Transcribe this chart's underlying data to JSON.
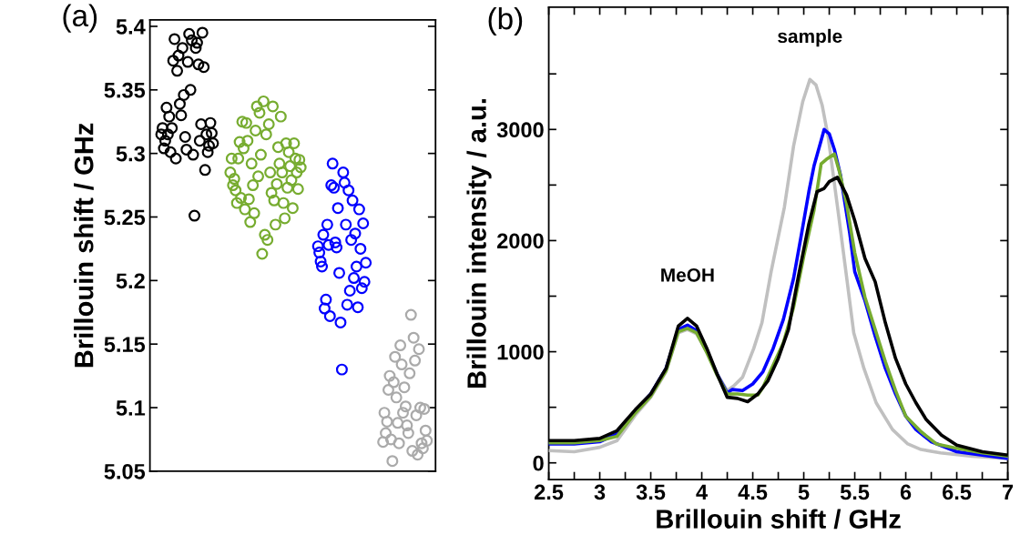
{
  "chart_data": [
    {
      "type": "scatter",
      "title": "(a)",
      "ylabel": "Brillouin shift / GHz",
      "marker": "circle",
      "tick_labels": "y",
      "categories": [
        null,
        null,
        null,
        null,
        null,
        null,
        null,
        null,
        null,
        null,
        null,
        null,
        null,
        null,
        null,
        null,
        null,
        null,
        null,
        null,
        null,
        null,
        null,
        null,
        null,
        null,
        null,
        null,
        null,
        null,
        null,
        null,
        null,
        null,
        null,
        null,
        null,
        null,
        null,
        null,
        null,
        null,
        null,
        null,
        null,
        null,
        null,
        null,
        null,
        null,
        null,
        null,
        null,
        null,
        null,
        null,
        null,
        null,
        null,
        null,
        null,
        null,
        null,
        null,
        null,
        null,
        null,
        null,
        null,
        null,
        null,
        null,
        null,
        null,
        null,
        null,
        null,
        null,
        null,
        null,
        null,
        null,
        null,
        null,
        null,
        null,
        null,
        null,
        null,
        null,
        null,
        null,
        null,
        null,
        null,
        null,
        null,
        null,
        null,
        null,
        null,
        null,
        null,
        null,
        null,
        null,
        null,
        null,
        null,
        null,
        null,
        null,
        null,
        null,
        null,
        null,
        null,
        null,
        null,
        null,
        null,
        null,
        null,
        null,
        null,
        null,
        null,
        null,
        null,
        null,
        null,
        null,
        null,
        null,
        null,
        null,
        null,
        null,
        null,
        null,
        null,
        null,
        null,
        null,
        null,
        null,
        null,
        null,
        null,
        null,
        null,
        null,
        null,
        null,
        null,
        null,
        null,
        null,
        null,
        null,
        null,
        null,
        null,
        null,
        null,
        null,
        null,
        null,
        null,
        null,
        null,
        null,
        null,
        null,
        null,
        null,
        null,
        null,
        null,
        null,
        null,
        null,
        null,
        null,
        null,
        null,
        null,
        null,
        null,
        null,
        null,
        null,
        null,
        null,
        null,
        null,
        null,
        null,
        null,
        null,
        null,
        null,
        null,
        null,
        null,
        null,
        null,
        null,
        null,
        null,
        null,
        null,
        null,
        null,
        null
      ],
      "ylim": [
        5.05,
        5.405
      ],
      "yticks": [
        5.05,
        5.1,
        5.15,
        5.2,
        5.25,
        5.3,
        5.35,
        5.4
      ],
      "series": [
        {
          "color": "#000000",
          "values": [
            null,
            null,
            null,
            null,
            null,
            null,
            null,
            null,
            5.315,
            5.32,
            5.304,
            5.31,
            5.336,
            5.315,
            5.329,
            5.301,
            5.32,
            5.373,
            5.39,
            5.296,
            5.365,
            5.377,
            5.339,
            5.33,
            5.383,
            5.346,
            5.313,
            5.303,
            5.372,
            5.394,
            5.35,
            5.389,
            5.299,
            5.251,
            5.383,
            5.387,
            5.37,
            5.31,
            5.323,
            5.395,
            5.368,
            5.287,
            5.315,
            5.301,
            5.306,
            5.324,
            5.316,
            5.308,
            null,
            null,
            null,
            null,
            null,
            null,
            null,
            null,
            null,
            null,
            null,
            null,
            null,
            null,
            null,
            null,
            null,
            null,
            null,
            null,
            null,
            null,
            null,
            null,
            null,
            null,
            null,
            null,
            null,
            null,
            null,
            null,
            null,
            null,
            null,
            null,
            null,
            null,
            null,
            null,
            null,
            null,
            null,
            null,
            null,
            null,
            null,
            null,
            null,
            null,
            null,
            null,
            null,
            null,
            null,
            null,
            null,
            null,
            null,
            null,
            null,
            null,
            null,
            null,
            null,
            null,
            null,
            null,
            null,
            null,
            null,
            null,
            null,
            null,
            null,
            null,
            null,
            null,
            null,
            null,
            null,
            null,
            null,
            null,
            null,
            null,
            null,
            null,
            null,
            null,
            null,
            null,
            null,
            null,
            null,
            null,
            null,
            null,
            null,
            null,
            null,
            null,
            null,
            null,
            null,
            null,
            null,
            null,
            null,
            null,
            null,
            null,
            null,
            null,
            null,
            null,
            null,
            null,
            null,
            null,
            null,
            null,
            null,
            null,
            null,
            null,
            null,
            null,
            null,
            null,
            null,
            null,
            null,
            null,
            null,
            null,
            null,
            null,
            null,
            null,
            null,
            null,
            null,
            null,
            null,
            null,
            null,
            null,
            null,
            null,
            null,
            null,
            null,
            null,
            null,
            null,
            null,
            null,
            null,
            null,
            null,
            null,
            null,
            null,
            null,
            null,
            null
          ]
        },
        {
          "color": "#77ac30",
          "values": [
            null,
            null,
            null,
            null,
            null,
            null,
            null,
            null,
            null,
            null,
            null,
            null,
            null,
            null,
            null,
            null,
            null,
            null,
            null,
            null,
            null,
            null,
            null,
            null,
            null,
            null,
            null,
            null,
            null,
            null,
            null,
            null,
            null,
            null,
            null,
            null,
            null,
            null,
            null,
            null,
            null,
            null,
            null,
            null,
            null,
            null,
            null,
            null,
            null,
            null,
            null,
            null,
            null,
            null,
            null,
            null,
            null,
            null,
            null,
            null,
            5.285,
            5.296,
            5.275,
            5.28,
            5.271,
            5.261,
            5.296,
            5.309,
            5.265,
            5.325,
            5.304,
            5.256,
            5.324,
            5.31,
            5.264,
            5.246,
            5.292,
            5.275,
            5.253,
            5.318,
            5.337,
            5.282,
            5.332,
            5.299,
            5.221,
            5.341,
            5.236,
            5.315,
            5.232,
            5.323,
            5.285,
            5.269,
            5.337,
            5.263,
            5.244,
            5.276,
            5.305,
            5.292,
            5.329,
            5.285,
            5.261,
            5.249,
            5.308,
            5.273,
            5.301,
            5.29,
            5.279,
            5.257,
            5.308,
            5.296,
            5.285,
            5.272,
            5.295,
            5.289,
            null,
            null,
            null,
            null,
            null,
            null,
            null,
            null,
            null,
            null,
            null,
            null,
            null,
            null,
            null,
            null,
            null,
            null,
            null,
            null,
            null,
            null,
            null,
            null,
            null,
            null,
            null,
            null,
            null,
            null,
            null,
            null,
            null,
            null,
            null,
            null,
            null,
            null,
            null,
            null,
            null,
            null,
            null,
            null,
            null,
            null,
            null,
            null,
            null,
            null,
            null,
            null,
            null,
            null,
            null,
            null,
            null,
            null,
            null,
            null,
            null,
            null,
            null,
            null,
            null,
            null,
            null,
            null,
            null,
            null,
            null,
            null,
            null,
            null,
            null,
            null,
            null,
            null,
            null,
            null,
            null,
            null,
            null,
            null,
            null,
            null,
            null,
            null,
            null,
            null,
            null,
            null,
            null,
            null,
            null,
            null,
            null,
            null,
            null,
            null,
            null
          ]
        },
        {
          "color": "#0000ff",
          "values": [
            null,
            null,
            null,
            null,
            null,
            null,
            null,
            null,
            null,
            null,
            null,
            null,
            null,
            null,
            null,
            null,
            null,
            null,
            null,
            null,
            null,
            null,
            null,
            null,
            null,
            null,
            null,
            null,
            null,
            null,
            null,
            null,
            null,
            null,
            null,
            null,
            null,
            null,
            null,
            null,
            null,
            null,
            null,
            null,
            null,
            null,
            null,
            null,
            null,
            null,
            null,
            null,
            null,
            null,
            null,
            null,
            null,
            null,
            null,
            null,
            null,
            null,
            null,
            null,
            null,
            null,
            null,
            null,
            null,
            null,
            null,
            null,
            null,
            null,
            null,
            null,
            null,
            null,
            null,
            null,
            null,
            null,
            null,
            null,
            null,
            null,
            null,
            null,
            null,
            null,
            null,
            null,
            null,
            null,
            null,
            null,
            null,
            null,
            null,
            null,
            null,
            null,
            null,
            null,
            null,
            null,
            null,
            null,
            null,
            null,
            null,
            null,
            null,
            null,
            null,
            null,
            null,
            null,
            null,
            null,
            null,
            null,
            null,
            null,
            null,
            null,
            5.227,
            5.222,
            5.215,
            5.211,
            5.236,
            5.178,
            5.185,
            5.244,
            5.228,
            5.172,
            5.275,
            5.292,
            5.273,
            5.23,
            5.226,
            5.257,
            5.206,
            5.167,
            5.13,
            5.285,
            5.277,
            5.244,
            5.181,
            5.271,
            5.192,
            5.232,
            5.263,
            5.202,
            5.237,
            5.211,
            5.179,
            5.256,
            5.225,
            5.194,
            5.245,
            5.199,
            5.214,
            null,
            null,
            null,
            null,
            null,
            null,
            null,
            null,
            null,
            null,
            null,
            null,
            null,
            null,
            null,
            null,
            null,
            null,
            null,
            null,
            null,
            null,
            null,
            null,
            null,
            null,
            null,
            null,
            null,
            null,
            null,
            null,
            null,
            null,
            null,
            null,
            null,
            null,
            null,
            null,
            null,
            null,
            null,
            null,
            null,
            null,
            null,
            null,
            null,
            null,
            null,
            null
          ]
        },
        {
          "color": "#aaaaaa",
          "values": [
            null,
            null,
            null,
            null,
            null,
            null,
            null,
            null,
            null,
            null,
            null,
            null,
            null,
            null,
            null,
            null,
            null,
            null,
            null,
            null,
            null,
            null,
            null,
            null,
            null,
            null,
            null,
            null,
            null,
            null,
            null,
            null,
            null,
            null,
            null,
            null,
            null,
            null,
            null,
            null,
            null,
            null,
            null,
            null,
            null,
            null,
            null,
            null,
            null,
            null,
            null,
            null,
            null,
            null,
            null,
            null,
            null,
            null,
            null,
            null,
            null,
            null,
            null,
            null,
            null,
            null,
            null,
            null,
            null,
            null,
            null,
            null,
            null,
            null,
            null,
            null,
            null,
            null,
            null,
            null,
            null,
            null,
            null,
            null,
            null,
            null,
            null,
            null,
            null,
            null,
            null,
            null,
            null,
            null,
            null,
            null,
            null,
            null,
            null,
            null,
            null,
            null,
            null,
            null,
            null,
            null,
            null,
            null,
            null,
            null,
            null,
            null,
            null,
            null,
            null,
            null,
            null,
            null,
            null,
            null,
            null,
            null,
            null,
            null,
            null,
            null,
            null,
            null,
            null,
            null,
            null,
            null,
            null,
            null,
            null,
            null,
            null,
            null,
            null,
            null,
            null,
            null,
            null,
            null,
            null,
            null,
            null,
            null,
            null,
            null,
            null,
            null,
            null,
            null,
            null,
            null,
            null,
            null,
            null,
            null,
            null,
            null,
            null,
            null,
            null,
            null,
            null,
            null,
            null,
            null,
            null,
            null,
            null,
            null,
            null,
            5.073,
            5.096,
            5.08,
            5.089,
            5.114,
            5.125,
            5.075,
            5.058,
            5.12,
            5.14,
            5.108,
            5.088,
            5.072,
            5.149,
            5.134,
            5.096,
            5.116,
            5.101,
            5.086,
            5.08,
            5.127,
            5.173,
            5.066,
            5.155,
            5.137,
            5.094,
            5.063,
            5.146,
            5.1,
            5.072,
            5.068,
            5.099,
            5.082,
            5.074,
            null,
            null,
            null,
            null,
            null,
            null
          ]
        }
      ]
    },
    {
      "type": "line",
      "title": "(b)",
      "xlabel": "Brillouin shift / GHz",
      "ylabel": "Brillouin intensity / a.u.",
      "line_style": "solid",
      "xlim": [
        2.5,
        7
      ],
      "xticks": [
        {
          "value": 2.5,
          "label": "2.5"
        },
        {
          "value": 2.75,
          "label": null
        },
        3,
        {
          "value": 3.25,
          "label": null
        },
        3.5,
        {
          "value": 3.75,
          "label": null
        },
        4,
        {
          "value": 4.25,
          "label": null
        },
        4.5,
        {
          "value": 4.75,
          "label": null
        },
        5,
        {
          "value": 5.25,
          "label": null
        },
        5.5,
        {
          "value": 5.75,
          "label": null
        },
        6,
        {
          "value": 6.25,
          "label": null
        },
        6.5,
        {
          "value": 6.75,
          "label": null
        },
        7
      ],
      "ylim": [
        -150,
        4100
      ],
      "yticks": [
        0,
        {
          "value": 500,
          "label": null
        },
        1000,
        {
          "value": 1500,
          "label": null
        },
        2000,
        {
          "value": 2500,
          "label": null
        },
        3000,
        {
          "value": 3500,
          "label": null
        }
      ],
      "annotations": [
        {
          "text": "MeOH",
          "x": 3.86,
          "y": 1300
        },
        {
          "text": "sample",
          "x": 5.06,
          "y": 3450
        }
      ],
      "series": [
        {
          "color": "#c0c0c0",
          "x": [
            2.5,
            2.75,
            3.0,
            3.17,
            3.35,
            3.5,
            3.65,
            3.77,
            3.86,
            3.95,
            4.05,
            4.15,
            4.25,
            4.31,
            4.4,
            4.51,
            4.59,
            4.68,
            4.81,
            4.9,
            4.99,
            5.06,
            5.12,
            5.18,
            5.24,
            5.34,
            5.43,
            5.49,
            5.59,
            5.71,
            5.87,
            6.02,
            6.15,
            6.34,
            6.65,
            7.0
          ],
          "values": [
            110,
            100,
            140,
            200,
            430,
            590,
            820,
            1170,
            1200,
            1160,
            1000,
            800,
            650,
            690,
            770,
            1030,
            1260,
            1720,
            2300,
            2850,
            3250,
            3450,
            3400,
            3220,
            2930,
            2240,
            1600,
            1170,
            850,
            540,
            300,
            170,
            120,
            90,
            60,
            40
          ]
        },
        {
          "color": "#0000ff",
          "x": [
            2.5,
            2.75,
            3.0,
            3.17,
            3.35,
            3.5,
            3.65,
            3.77,
            3.86,
            3.95,
            4.05,
            4.15,
            4.25,
            4.3,
            4.4,
            4.5,
            4.6,
            4.7,
            4.8,
            4.9,
            4.98,
            5.05,
            5.1,
            5.17,
            5.2,
            5.25,
            5.3,
            5.36,
            5.45,
            5.5,
            5.6,
            5.7,
            5.8,
            5.9,
            6.0,
            6.1,
            6.25,
            6.5,
            6.75,
            7.0
          ],
          "values": [
            170,
            170,
            190,
            260,
            470,
            620,
            850,
            1200,
            1240,
            1190,
            1000,
            800,
            630,
            660,
            650,
            710,
            820,
            1030,
            1290,
            1660,
            2070,
            2440,
            2670,
            2900,
            3000,
            2960,
            2820,
            2590,
            2070,
            1720,
            1460,
            1140,
            850,
            620,
            420,
            300,
            190,
            100,
            70,
            40
          ]
        },
        {
          "color": "#77ac30",
          "x": [
            2.5,
            2.75,
            3.0,
            3.17,
            3.35,
            3.5,
            3.65,
            3.77,
            3.86,
            3.95,
            4.05,
            4.15,
            4.25,
            4.35,
            4.45,
            4.55,
            4.6,
            4.7,
            4.8,
            4.9,
            5.0,
            5.1,
            5.17,
            5.22,
            5.3,
            5.35,
            5.42,
            5.5,
            5.6,
            5.7,
            5.8,
            5.9,
            6.0,
            6.15,
            6.3,
            6.5,
            6.75,
            7.0
          ],
          "values": [
            180,
            180,
            200,
            240,
            450,
            600,
            830,
            1180,
            1210,
            1170,
            990,
            790,
            620,
            620,
            610,
            610,
            680,
            880,
            1080,
            1400,
            1860,
            2270,
            2690,
            2730,
            2780,
            2620,
            2330,
            1890,
            1490,
            1200,
            910,
            650,
            420,
            280,
            170,
            130,
            90,
            60
          ]
        },
        {
          "color": "#000000",
          "x": [
            2.5,
            2.75,
            3.0,
            3.17,
            3.35,
            3.5,
            3.65,
            3.77,
            3.86,
            3.95,
            4.05,
            4.15,
            4.25,
            4.35,
            4.45,
            4.55,
            4.65,
            4.75,
            4.85,
            4.95,
            5.05,
            5.13,
            5.2,
            5.25,
            5.33,
            5.42,
            5.5,
            5.6,
            5.7,
            5.8,
            5.9,
            6.0,
            6.1,
            6.2,
            6.35,
            6.5,
            6.75,
            7.0
          ],
          "values": [
            200,
            200,
            220,
            290,
            480,
            620,
            850,
            1230,
            1300,
            1230,
            1030,
            800,
            590,
            580,
            550,
            620,
            740,
            940,
            1200,
            1690,
            2150,
            2440,
            2470,
            2530,
            2570,
            2410,
            2180,
            1840,
            1630,
            1260,
            940,
            710,
            540,
            390,
            250,
            160,
            100,
            70
          ]
        }
      ]
    }
  ]
}
